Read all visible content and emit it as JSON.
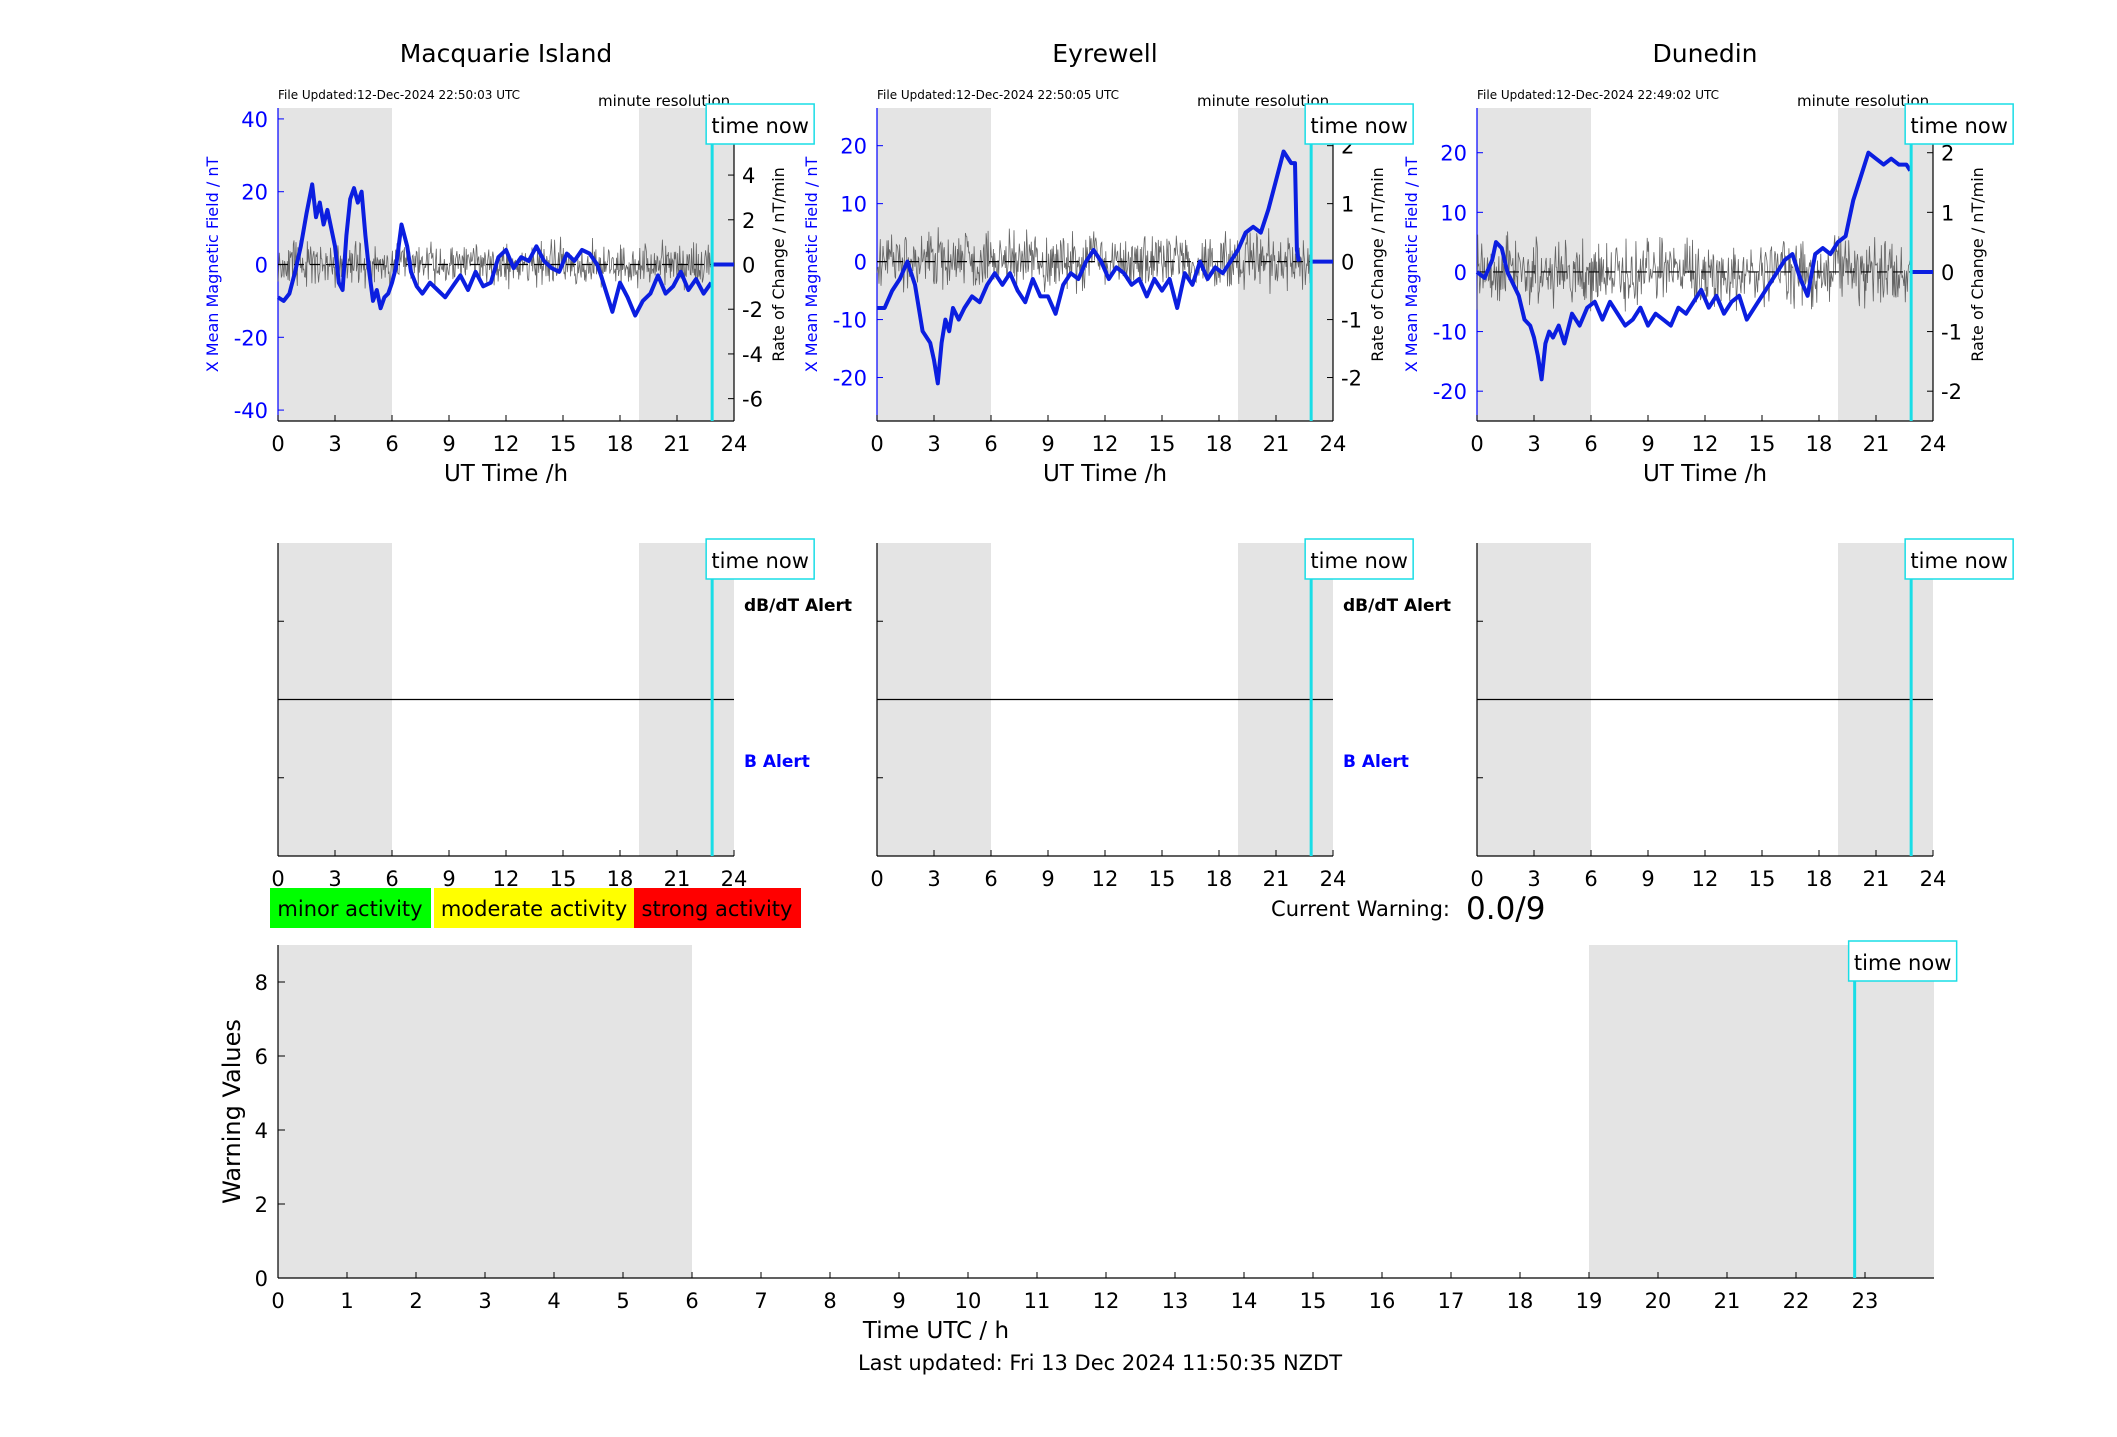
{
  "colors": {
    "field_line": "#0b1ee0",
    "rate_line": "#555555",
    "time_now": "#19dde6",
    "night_shade": "#e4e4e4",
    "axis_left": "#0000ff",
    "minor": "#00ff00",
    "moderate": "#ffff00",
    "strong": "#ff0000",
    "b_alert": "#0000ff"
  },
  "common": {
    "time_now_label": "time now",
    "minute_resolution": "minute resolution",
    "x_label_top": "UT Time /h",
    "y_label_left": "X Mean Magnetic Field / nT",
    "y_label_right": "Rate of Change / nT/min",
    "dbdt_alert": "dB/dT Alert",
    "b_alert": "B Alert"
  },
  "legend": {
    "minor": "minor activity",
    "moderate": "moderate activity",
    "strong": "strong activity"
  },
  "warning": {
    "label": "Current Warning:",
    "value": "0.0/9"
  },
  "footer": {
    "last_updated": "Last updated: Fri 13 Dec 2024 11:50:35 NZDT"
  },
  "chart_data": [
    {
      "type": "line",
      "id": "macquarie",
      "title": "Macquarie Island",
      "file_updated": "File Updated:12-Dec-2024 22:50:03 UTC",
      "xlabel": "UT Time /h",
      "ylabel": "X Mean Magnetic Field / nT",
      "y2label": "Rate of Change / nT/min",
      "xlim": [
        0,
        24
      ],
      "ylim": [
        -43,
        43
      ],
      "y2lim": [
        -7,
        7
      ],
      "xticks": [
        0,
        3,
        6,
        9,
        12,
        15,
        18,
        21,
        24
      ],
      "yticks": [
        -40,
        -20,
        0,
        20,
        40
      ],
      "y2ticks": [
        -6,
        -4,
        -2,
        0,
        2,
        4,
        6
      ],
      "shaded_x": [
        [
          0,
          6
        ],
        [
          19,
          24
        ]
      ],
      "time_now": 22.85,
      "series": [
        {
          "x": [
            0,
            0.3,
            0.6,
            0.9,
            1.2,
            1.5,
            1.8,
            2.0,
            2.2,
            2.4,
            2.6,
            2.8,
            3.0,
            3.2,
            3.4,
            3.6,
            3.8,
            4.0,
            4.2,
            4.4,
            4.6,
            4.8,
            5.0,
            5.2,
            5.4,
            5.6,
            5.8,
            6.0,
            6.2,
            6.5,
            6.8,
            7.0,
            7.3,
            7.6,
            8.0,
            8.4,
            8.8,
            9.2,
            9.6,
            10.0,
            10.4,
            10.8,
            11.2,
            11.6,
            12.0,
            12.4,
            12.8,
            13.2,
            13.6,
            14.0,
            14.4,
            14.8,
            15.2,
            15.6,
            16.0,
            16.4,
            16.8,
            17.0,
            17.3,
            17.6,
            18.0,
            18.4,
            18.8,
            19.2,
            19.6,
            20.0,
            20.4,
            20.8,
            21.2,
            21.6,
            22.0,
            22.4,
            22.8
          ],
          "y": [
            -9,
            -10,
            -8,
            -2,
            5,
            14,
            22,
            13,
            17,
            11,
            15,
            10,
            5,
            -5,
            -7,
            8,
            18,
            21,
            17,
            20,
            8,
            -2,
            -10,
            -7,
            -12,
            -9,
            -8,
            -5,
            -1,
            11,
            5,
            -2,
            -6,
            -8,
            -5,
            -7,
            -9,
            -6,
            -3,
            -7,
            -2,
            -6,
            -5,
            2,
            4,
            -1,
            2,
            1,
            5,
            1,
            -1,
            -2,
            3,
            1,
            4,
            3,
            0,
            -3,
            -8,
            -13,
            -5,
            -9,
            -14,
            -10,
            -8,
            -3,
            -8,
            -6,
            -2,
            -7,
            -4,
            -8,
            -5
          ]
        },
        {
          "name": "rate",
          "seed": 11,
          "amp": 0.9
        }
      ]
    },
    {
      "type": "line",
      "id": "eyrewell",
      "title": "Eyrewell",
      "file_updated": "File Updated:12-Dec-2024 22:50:05 UTC",
      "xlabel": "UT Time /h",
      "ylabel": "X Mean Magnetic Field / nT",
      "y2label": "Rate of Change / nT/min",
      "xlim": [
        0,
        24
      ],
      "ylim": [
        -27.5,
        26.5
      ],
      "y2lim": [
        -2.75,
        2.65
      ],
      "xticks": [
        0,
        3,
        6,
        9,
        12,
        15,
        18,
        21,
        24
      ],
      "yticks": [
        -20,
        -10,
        0,
        10,
        20
      ],
      "y2ticks": [
        -2,
        -1,
        0,
        1,
        2
      ],
      "shaded_x": [
        [
          0,
          6
        ],
        [
          19,
          24
        ]
      ],
      "time_now": 22.85,
      "series": [
        {
          "x": [
            0,
            0.4,
            0.8,
            1.2,
            1.6,
            2.0,
            2.4,
            2.8,
            3.0,
            3.2,
            3.4,
            3.6,
            3.8,
            4.0,
            4.3,
            4.6,
            5.0,
            5.4,
            5.8,
            6.2,
            6.6,
            7.0,
            7.4,
            7.8,
            8.2,
            8.6,
            9.0,
            9.4,
            9.8,
            10.2,
            10.6,
            11.0,
            11.4,
            11.8,
            12.2,
            12.6,
            13.0,
            13.4,
            13.8,
            14.2,
            14.6,
            15.0,
            15.4,
            15.8,
            16.2,
            16.6,
            17.0,
            17.4,
            17.8,
            18.2,
            18.6,
            19.0,
            19.4,
            19.8,
            20.2,
            20.6,
            21.0,
            21.4,
            21.8,
            22.0,
            22.1,
            22.2
          ],
          "y": [
            -8,
            -8,
            -5,
            -3,
            0,
            -4,
            -12,
            -14,
            -17,
            -21,
            -14,
            -10,
            -12,
            -8,
            -10,
            -8,
            -6,
            -7,
            -4,
            -2,
            -4,
            -2,
            -5,
            -7,
            -3,
            -6,
            -6,
            -9,
            -4,
            -2,
            -3,
            0,
            2,
            0,
            -3,
            -1,
            -2,
            -4,
            -3,
            -6,
            -3,
            -5,
            -3,
            -8,
            -2,
            -4,
            0,
            -3,
            -1,
            -2,
            0,
            2,
            5,
            6,
            5,
            9,
            14,
            19,
            17,
            17,
            2,
            0
          ]
        },
        {
          "name": "rate",
          "seed": 23,
          "amp": 0.45
        }
      ]
    },
    {
      "type": "line",
      "id": "dunedin",
      "title": "Dunedin",
      "file_updated": "File Updated:12-Dec-2024 22:49:02 UTC",
      "xlabel": "UT Time /h",
      "ylabel": "X Mean Magnetic Field / nT",
      "y2label": "Rate of Change / nT/min",
      "xlim": [
        0,
        24
      ],
      "ylim": [
        -25,
        27.5
      ],
      "y2lim": [
        -2.5,
        2.75
      ],
      "xticks": [
        0,
        3,
        6,
        9,
        12,
        15,
        18,
        21,
        24
      ],
      "yticks": [
        -20,
        -10,
        0,
        10,
        20
      ],
      "y2ticks": [
        -2,
        -1,
        0,
        1,
        2
      ],
      "shaded_x": [
        [
          0,
          6
        ],
        [
          19,
          24
        ]
      ],
      "time_now": 22.85,
      "series": [
        {
          "x": [
            0,
            0.4,
            0.8,
            1.0,
            1.3,
            1.6,
            1.9,
            2.2,
            2.5,
            2.8,
            3.0,
            3.2,
            3.4,
            3.6,
            3.8,
            4.0,
            4.3,
            4.6,
            5.0,
            5.4,
            5.8,
            6.2,
            6.6,
            7.0,
            7.4,
            7.8,
            8.2,
            8.6,
            9.0,
            9.4,
            9.8,
            10.2,
            10.6,
            11.0,
            11.4,
            11.8,
            12.2,
            12.6,
            13.0,
            13.4,
            13.8,
            14.2,
            14.6,
            15.0,
            15.4,
            15.8,
            16.2,
            16.6,
            17.0,
            17.4,
            17.8,
            18.2,
            18.6,
            19.0,
            19.4,
            19.8,
            20.2,
            20.6,
            21.0,
            21.4,
            21.8,
            22.2,
            22.6,
            22.8
          ],
          "y": [
            0,
            -1,
            2,
            5,
            4,
            0,
            -2,
            -4,
            -8,
            -9,
            -11,
            -14,
            -18,
            -12,
            -10,
            -11,
            -9,
            -12,
            -7,
            -9,
            -6,
            -5,
            -8,
            -5,
            -7,
            -9,
            -8,
            -6,
            -9,
            -7,
            -8,
            -9,
            -6,
            -7,
            -5,
            -3,
            -6,
            -4,
            -7,
            -5,
            -4,
            -8,
            -6,
            -4,
            -2,
            0,
            2,
            3,
            -1,
            -4,
            3,
            4,
            3,
            5,
            6,
            12,
            16,
            20,
            19,
            18,
            19,
            18,
            18,
            17
          ]
        },
        {
          "name": "rate",
          "seed": 37,
          "amp": 0.5
        }
      ]
    },
    {
      "type": "line",
      "id": "alert_macquarie",
      "xlim": [
        0,
        24
      ],
      "xticks": [
        0,
        3,
        6,
        9,
        12,
        15,
        18,
        21,
        24
      ],
      "shaded_x": [
        [
          0,
          6
        ],
        [
          19,
          24
        ]
      ],
      "time_now": 22.85,
      "series": []
    },
    {
      "type": "line",
      "id": "alert_eyrewell",
      "xlim": [
        0,
        24
      ],
      "xticks": [
        0,
        3,
        6,
        9,
        12,
        15,
        18,
        21,
        24
      ],
      "shaded_x": [
        [
          0,
          6
        ],
        [
          19,
          24
        ]
      ],
      "time_now": 22.85,
      "series": []
    },
    {
      "type": "line",
      "id": "alert_dunedin",
      "xlim": [
        0,
        24
      ],
      "xticks": [
        0,
        3,
        6,
        9,
        12,
        15,
        18,
        21,
        24
      ],
      "shaded_x": [
        [
          0,
          6
        ],
        [
          19,
          24
        ]
      ],
      "time_now": 22.85,
      "series": []
    },
    {
      "type": "bar",
      "id": "warning_values",
      "xlabel": "Time UTC / h",
      "ylabel": "Warning Values",
      "xlim": [
        0,
        24
      ],
      "ylim": [
        0,
        9
      ],
      "xticks": [
        0,
        1,
        2,
        3,
        4,
        5,
        6,
        7,
        8,
        9,
        10,
        11,
        12,
        13,
        14,
        15,
        16,
        17,
        18,
        19,
        20,
        21,
        22,
        23
      ],
      "yticks": [
        0,
        2,
        4,
        6,
        8
      ],
      "shaded_x": [
        [
          0,
          6
        ],
        [
          19,
          24
        ]
      ],
      "time_now": 22.85,
      "series": []
    }
  ]
}
